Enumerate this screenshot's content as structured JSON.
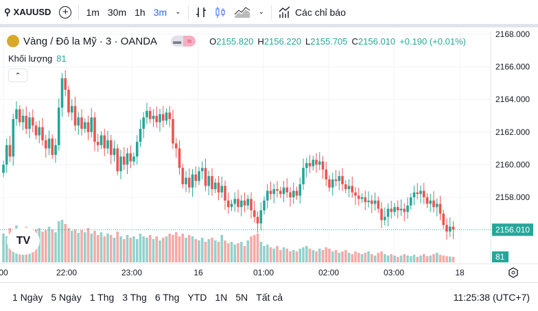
{
  "toolbar": {
    "symbol": "XAUUSD",
    "intervals": [
      "1m",
      "30m",
      "1h",
      "3m"
    ],
    "active_interval": "3m",
    "indicators": "Các chỉ báo"
  },
  "legend": {
    "title": "Vàng / Đô la Mỹ · 3 · OANDA",
    "o_label": "O",
    "o": "2155.820",
    "h_label": "H",
    "h": "2156.220",
    "l_label": "L",
    "l": "2155.705",
    "c_label": "C",
    "c": "2156.010",
    "change": "+0.190 (+0.01%)"
  },
  "volume": {
    "label": "Khối lượng",
    "value": "81"
  },
  "price_axis": {
    "ticks": [
      "2168.000",
      "2166.000",
      "2164.000",
      "2162.000",
      "2160.000",
      "2158.000"
    ],
    "last_price": "2156.010",
    "last_volume": "81"
  },
  "time_axis": {
    "labels": [
      "00",
      "22:00",
      "23:00",
      "16",
      "01:00",
      "02:00",
      "03:00",
      "18"
    ]
  },
  "ranges": [
    "1 Ngày",
    "5 Ngày",
    "1 Thg",
    "3 Thg",
    "6 Thg",
    "YTD",
    "1N",
    "5N",
    "Tất cả"
  ],
  "clock": "11:25:38 (UTC+7)",
  "colors": {
    "up": "#26a69a",
    "down": "#ef5350",
    "accent": "#2962ff"
  },
  "chart_data": {
    "type": "candlestick",
    "first_open": 2159.5,
    "closes": [
      2160.0,
      2161.2,
      2160.5,
      2162.8,
      2163.4,
      2162.6,
      2163.0,
      2162.2,
      2162.9,
      2162.4,
      2161.8,
      2162.3,
      2161.5,
      2161.0,
      2161.6,
      2160.6,
      2161.2,
      2163.5,
      2165.3,
      2164.6,
      2163.2,
      2163.6,
      2162.4,
      2162.9,
      2162.2,
      2162.6,
      2162.0,
      2162.9,
      2161.4,
      2161.2,
      2161.8,
      2161.0,
      2161.5,
      2160.6,
      2161.0,
      2159.6,
      2160.5,
      2160.0,
      2160.7,
      2160.2,
      2160.5,
      2161.4,
      2162.2,
      2162.9,
      2163.3,
      2162.8,
      2163.0,
      2162.6,
      2163.1,
      2162.7,
      2163.2,
      2162.8,
      2161.3,
      2161.0,
      2159.8,
      2158.8,
      2159.2,
      2158.6,
      2159.4,
      2159.0,
      2159.6,
      2159.8,
      2158.7,
      2159.3,
      2158.5,
      2158.9,
      2158.3,
      2158.7,
      2157.8,
      2157.4,
      2157.6,
      2157.9,
      2157.4,
      2157.8,
      2157.5,
      2157.9,
      2157.2,
      2156.8,
      2156.4,
      2157.2,
      2157.8,
      2158.4,
      2158.2,
      2158.5,
      2158.4,
      2158.2,
      2158.6,
      2158.3,
      2158.0,
      2158.4,
      2158.1,
      2158.8,
      2159.8,
      2160.1,
      2159.9,
      2160.3,
      2160.0,
      2160.2,
      2159.7,
      2159.1,
      2158.6,
      2159.1,
      2159.0,
      2159.3,
      2158.8,
      2158.5,
      2158.7,
      2158.3,
      2158.1,
      2157.9,
      2158.0,
      2157.7,
      2157.8,
      2157.6,
      2157.8,
      2157.3,
      2156.6,
      2156.8,
      2157.3,
      2157.1,
      2157.4,
      2157.2,
      2157.3,
      2157.1,
      2157.5,
      2158.0,
      2158.3,
      2158.2,
      2158.4,
      2158.0,
      2157.6,
      2157.8,
      2157.4,
      2157.6,
      2157.0,
      2156.3,
      2155.9,
      2156.2,
      2156.01
    ],
    "volumes": [
      420,
      380,
      500,
      460,
      540,
      480,
      440,
      520,
      470,
      430,
      480,
      500,
      450,
      470,
      520,
      480,
      440,
      600,
      620,
      560,
      500,
      460,
      480,
      430,
      470,
      440,
      500,
      420,
      460,
      400,
      440,
      380,
      420,
      400,
      360,
      450,
      380,
      340,
      400,
      360,
      380,
      340,
      420,
      380,
      360,
      400,
      340,
      380,
      320,
      360,
      380,
      420,
      400,
      440,
      380,
      420,
      360,
      400,
      380,
      340,
      320,
      360,
      300,
      340,
      360,
      320,
      300,
      400,
      320,
      280,
      300,
      260,
      280,
      300,
      240,
      320,
      380,
      400,
      420,
      300,
      240,
      260,
      220,
      200,
      240,
      180,
      220,
      200,
      160,
      180,
      160,
      200,
      220,
      240,
      200,
      180,
      160,
      200,
      180,
      220,
      200,
      160,
      180,
      140,
      160,
      180,
      140,
      120,
      160,
      140,
      120,
      140,
      160,
      120,
      100,
      140,
      160,
      120,
      100,
      120,
      100,
      80,
      100,
      120,
      100,
      90,
      110,
      80,
      100,
      120,
      90,
      100,
      120,
      140,
      110,
      100,
      90,
      85,
      81
    ],
    "ylim": [
      2155.3,
      2168.2
    ]
  }
}
